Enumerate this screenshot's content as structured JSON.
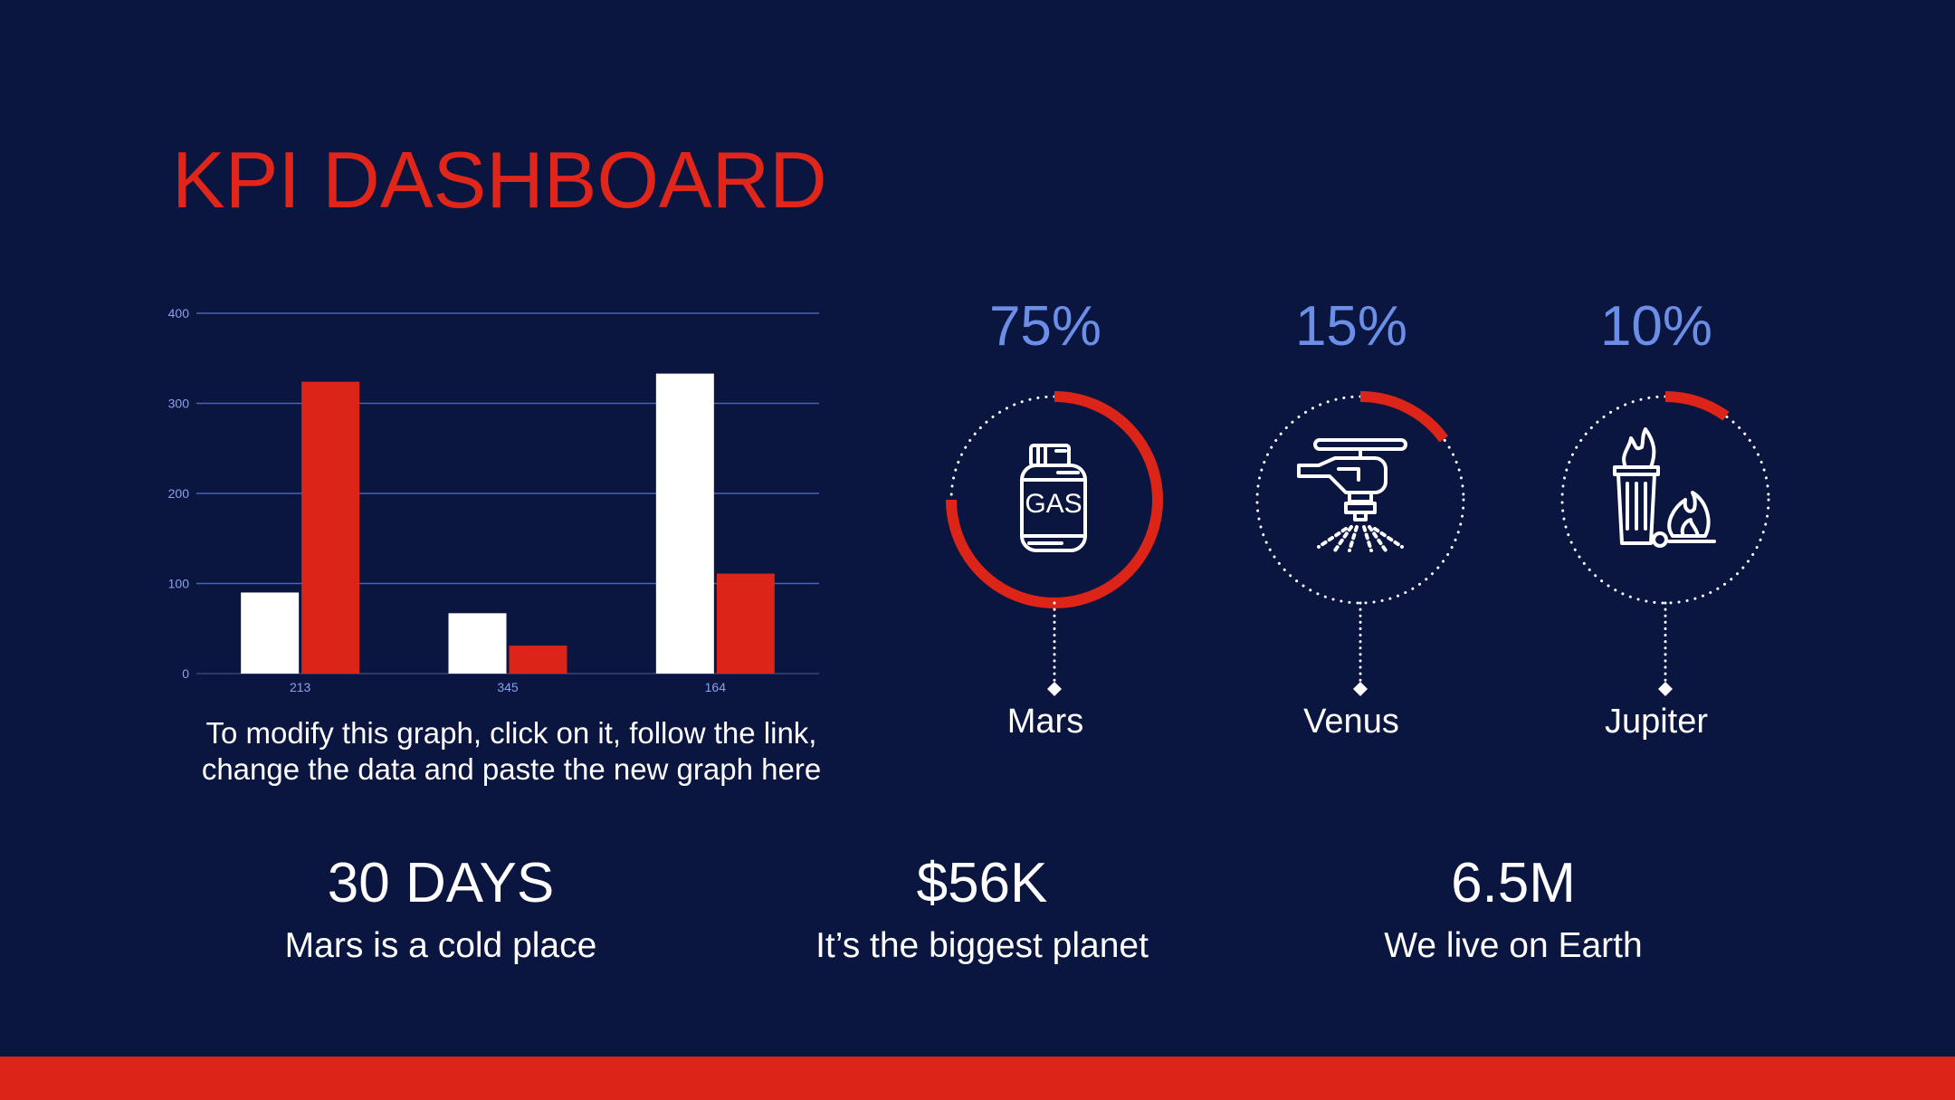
{
  "title": "KPI DASHBOARD",
  "colors": {
    "background": "#0a1540",
    "accent": "#dc2418",
    "pct": "#6b8fe6",
    "grid": "#4a62b8",
    "white": "#ffffff"
  },
  "chart_data": {
    "type": "bar",
    "categories": [
      "213",
      "345",
      "164"
    ],
    "series": [
      {
        "values": [
          90,
          67,
          333
        ],
        "color": "#ffffff"
      },
      {
        "values": [
          324,
          31,
          111
        ],
        "color": "#dc2418"
      }
    ],
    "yticks": [
      "0",
      "100",
      "200",
      "300",
      "400"
    ],
    "ylim": [
      0,
      400
    ],
    "grid": true
  },
  "chart_caption": "To modify this graph, click on it, follow the link, change the data and paste the new graph here",
  "kpis": [
    {
      "percent": "75%",
      "value": 0.75,
      "label": "Mars",
      "icon": "gas-cylinder-icon"
    },
    {
      "percent": "15%",
      "value": 0.15,
      "label": "Venus",
      "icon": "helicopter-sprinkler-icon"
    },
    {
      "percent": "10%",
      "value": 0.1,
      "label": "Jupiter",
      "icon": "burning-trash-icon"
    }
  ],
  "stats": [
    {
      "value": "30 DAYS",
      "desc": "Mars is a cold place"
    },
    {
      "value": "$56K",
      "desc": "It’s the biggest planet"
    },
    {
      "value": "6.5M",
      "desc": "We live on Earth"
    }
  ]
}
